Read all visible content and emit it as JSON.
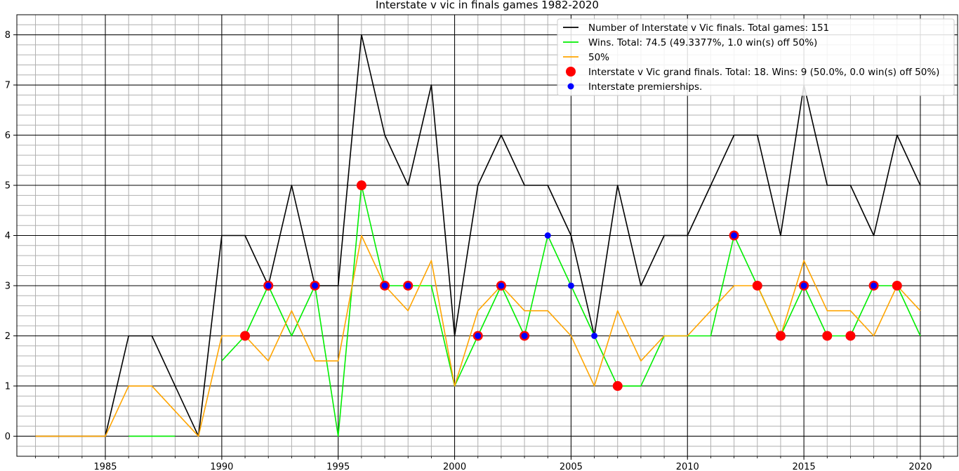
{
  "chart_data": {
    "type": "line",
    "title": "Interstate v vic in finals games 1982-2020",
    "xlabel": "",
    "ylabel": "",
    "xlim": [
      1981.2,
      1984.0
    ],
    "ylim": [
      -0.4,
      8.4
    ],
    "x_ticks": [
      1985,
      1990,
      1995,
      2000,
      2005,
      2010,
      2015,
      2020
    ],
    "y_ticks": [
      0,
      1,
      2,
      3,
      4,
      5,
      6,
      7,
      8
    ],
    "grid": true,
    "minor_grid": true,
    "legend_position": "top-right",
    "series": [
      {
        "name": "Number of Interstate v Vic finals. Total games: 151",
        "kind": "line",
        "color": "#000000",
        "x": [
          1982,
          1983,
          1984,
          1985,
          1986,
          1987,
          1988,
          1989,
          1990,
          1991,
          1992,
          1993,
          1994,
          1995,
          1996,
          1997,
          1998,
          1999,
          2000,
          2001,
          2002,
          2003,
          2004,
          2005,
          2006,
          2007,
          2008,
          2009,
          2010,
          2011,
          2012,
          2013,
          2014,
          2015,
          2016,
          2017,
          2018,
          2019,
          2020
        ],
        "values": [
          0,
          0,
          0,
          0,
          2,
          2,
          1,
          0,
          4,
          4,
          3,
          5,
          3,
          3,
          8,
          6,
          5,
          7,
          2,
          5,
          6,
          5,
          5,
          4,
          2,
          5,
          3,
          4,
          4,
          5,
          6,
          6,
          4,
          7,
          5,
          5,
          4,
          6,
          5
        ]
      },
      {
        "name": "Wins. Total: 74.5 (49.3377%, 1.0 win(s) off 50%)",
        "kind": "line",
        "color": "#00ee00",
        "segments": [
          {
            "x": [
              1986,
              1987,
              1988
            ],
            "values": [
              0,
              0,
              0
            ]
          },
          {
            "x": [
              1990,
              1991,
              1992,
              1993,
              1994,
              1995,
              1996,
              1997,
              1998,
              1999,
              2000,
              2001,
              2002,
              2003,
              2004,
              2005,
              2006,
              2007,
              2008,
              2009,
              2010,
              2011,
              2012,
              2013,
              2014,
              2015,
              2016,
              2017,
              2018,
              2019,
              2020
            ],
            "values": [
              1.5,
              2,
              3,
              2,
              3,
              0,
              5,
              3,
              3,
              3,
              1,
              2,
              3,
              2,
              4,
              3,
              2,
              1,
              1,
              2,
              2,
              2,
              4,
              3,
              2,
              3,
              2,
              2,
              3,
              3,
              2
            ]
          }
        ]
      },
      {
        "name": "50%",
        "kind": "line",
        "color": "#ffa500",
        "x": [
          1982,
          1983,
          1984,
          1985,
          1986,
          1987,
          1988,
          1989,
          1990,
          1991,
          1992,
          1993,
          1994,
          1995,
          1996,
          1997,
          1998,
          1999,
          2000,
          2001,
          2002,
          2003,
          2004,
          2005,
          2006,
          2007,
          2008,
          2009,
          2010,
          2011,
          2012,
          2013,
          2014,
          2015,
          2016,
          2017,
          2018,
          2019,
          2020
        ],
        "values": [
          0,
          0,
          0,
          0,
          1,
          1,
          0.5,
          0,
          2,
          2,
          1.5,
          2.5,
          1.5,
          1.5,
          4,
          3,
          2.5,
          3.5,
          1,
          2.5,
          3,
          2.5,
          2.5,
          2,
          1,
          2.5,
          1.5,
          2,
          2,
          2.5,
          3,
          3,
          2,
          3.5,
          2.5,
          2.5,
          2,
          3,
          2.5
        ]
      },
      {
        "name": "Interstate v Vic grand finals. Total: 18. Wins: 9 (50.0%, 0.0 win(s) off 50%)",
        "kind": "scatter",
        "color": "#ff0000",
        "x": [
          1991,
          1992,
          1994,
          1996,
          1997,
          1998,
          2001,
          2002,
          2003,
          2007,
          2012,
          2013,
          2014,
          2015,
          2016,
          2017,
          2018,
          2019
        ],
        "values": [
          2,
          3,
          3,
          5,
          3,
          3,
          2,
          3,
          2,
          1,
          4,
          3,
          2,
          3,
          2,
          2,
          3,
          3
        ]
      },
      {
        "name": "Interstate premierships.",
        "kind": "scatter",
        "color": "#0000ff",
        "x": [
          1992,
          1994,
          1997,
          1998,
          2001,
          2002,
          2003,
          2004,
          2005,
          2006,
          2012,
          2015,
          2018
        ],
        "values": [
          3,
          3,
          3,
          3,
          2,
          3,
          2,
          4,
          3,
          2,
          4,
          3,
          3
        ]
      }
    ]
  }
}
